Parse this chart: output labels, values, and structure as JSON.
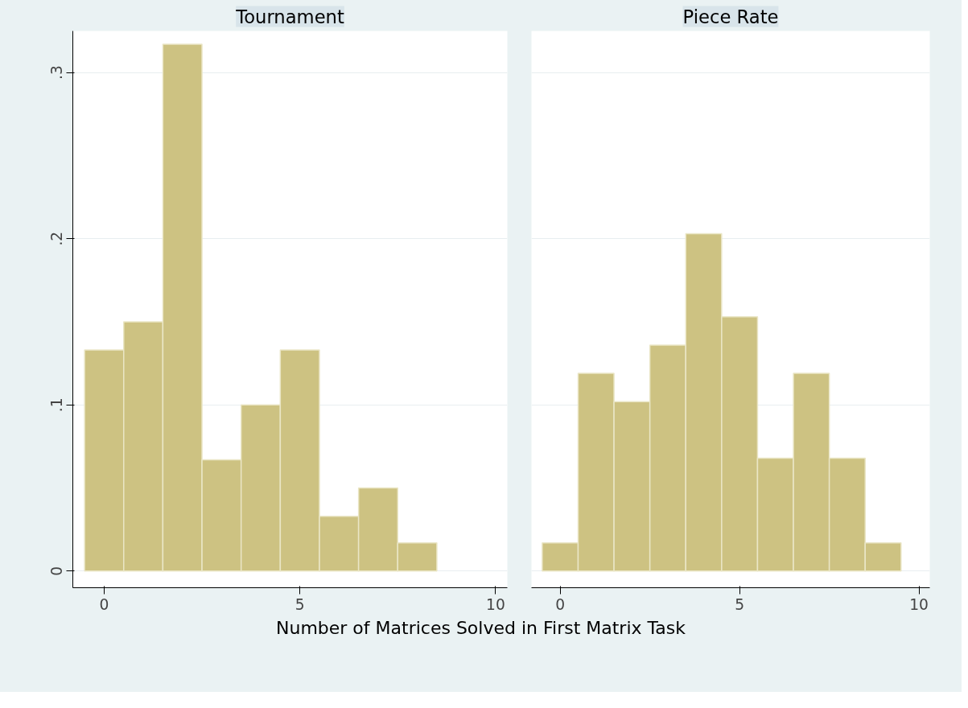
{
  "chart_data": [
    {
      "type": "histogram",
      "title": "Tournament",
      "xlabel": "Number of Matrices Solved in First Matrix Task",
      "bins": [
        -0.5,
        0.5,
        1.5,
        2.5,
        3.5,
        4.5,
        5.5,
        6.5,
        7.5,
        8.5
      ],
      "values": [
        0.133,
        0.15,
        0.317,
        0.067,
        0.1,
        0.133,
        0.033,
        0.05,
        0.017
      ],
      "color": "#cdc282",
      "xlim": [
        -0.8,
        10.3
      ],
      "ylim": [
        -0.01,
        0.325
      ],
      "xticks": [
        0,
        5,
        10
      ],
      "yticks": [
        0,
        {
          "value": 0.1,
          "label": ".1"
        },
        {
          "value": 0.2,
          "label": ".2"
        },
        {
          "value": 0.3,
          "label": ".3"
        }
      ],
      "grid": "y"
    },
    {
      "type": "histogram",
      "title": "Piece Rate",
      "bins": [
        -0.5,
        0.5,
        1.5,
        2.5,
        3.5,
        4.5,
        5.5,
        6.5,
        7.5,
        8.5,
        9.5
      ],
      "values": [
        0.017,
        0.119,
        0.102,
        0.136,
        0.203,
        0.153,
        0.068,
        0.119,
        0.068,
        0.017
      ],
      "color": "#cdc282",
      "xlim": [
        -0.8,
        10.3
      ],
      "ylim": [
        -0.01,
        0.325
      ],
      "xticks": [
        0,
        5,
        10
      ],
      "grid": "y",
      "tick_labels": "x"
    }
  ]
}
